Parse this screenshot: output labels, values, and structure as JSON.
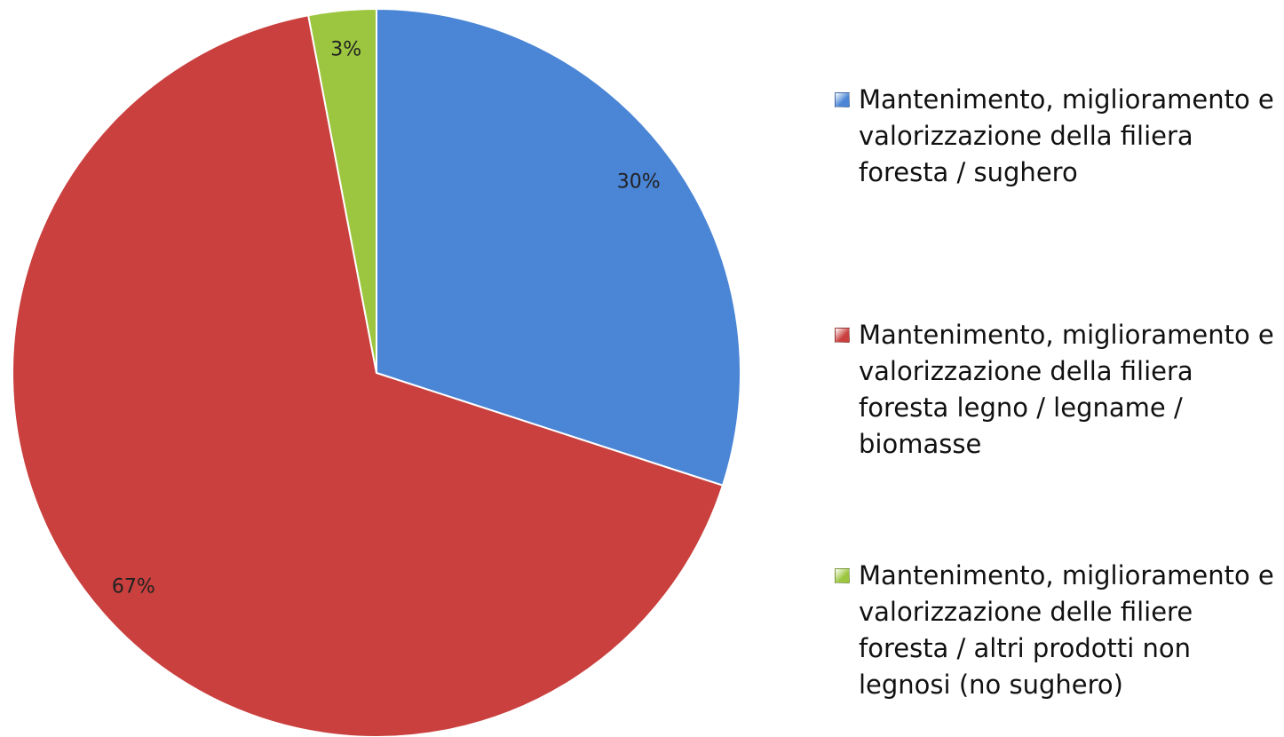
{
  "chart_data": {
    "type": "pie",
    "categories": [
      "Mantenimento, miglioramento e valorizzazione della filiera foresta / sughero",
      "Mantenimento, miglioramento e valorizzazione della filiera foresta legno / legname / biomasse",
      "Mantenimento, miglioramento e valorizzazione delle filiere foresta / altri prodotti non legnosi (no sughero)"
    ],
    "values": [
      30,
      67,
      3
    ],
    "value_labels": [
      "30%",
      "67%",
      "3%"
    ],
    "colors": [
      "#4a85d6",
      "#c9403e",
      "#9cc63f"
    ],
    "legend": "right"
  }
}
